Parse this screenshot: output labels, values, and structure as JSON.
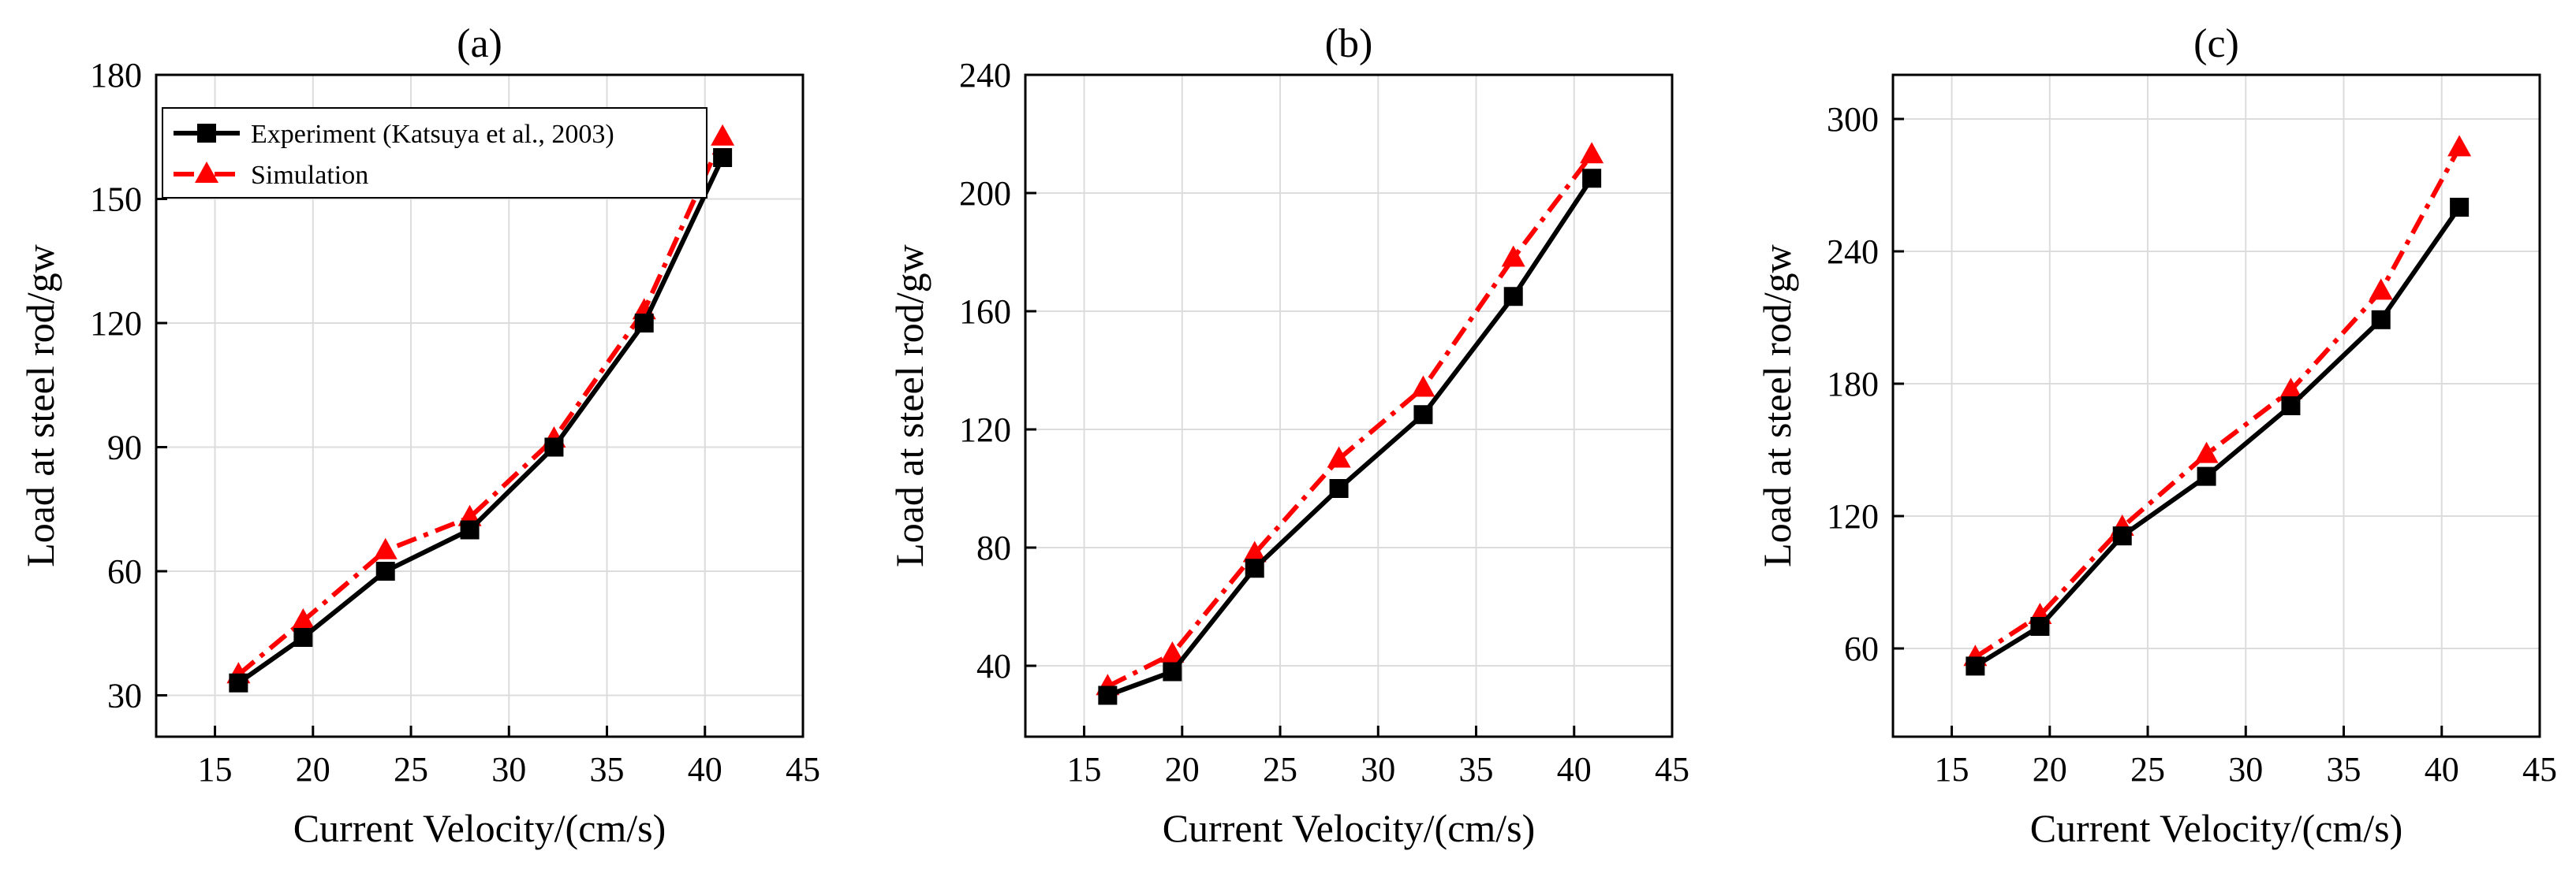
{
  "chart_data": [
    {
      "type": "line",
      "title": "(a)",
      "xlabel": "Current Velocity/(cm/s)",
      "ylabel": "Load at steel rod/gw",
      "xlim": [
        12,
        45
      ],
      "ylim": [
        20,
        180
      ],
      "xticks": [
        15,
        20,
        25,
        30,
        35,
        40,
        45
      ],
      "yticks": [
        30,
        60,
        90,
        120,
        150,
        180
      ],
      "grid": true,
      "legend": {
        "position": "top-left",
        "entries": [
          "Experiment (Katsuya et al., 2003)",
          "Simulation"
        ]
      },
      "series": [
        {
          "name": "Experiment (Katsuya et al., 2003)",
          "color": "#000000",
          "marker": "square",
          "linestyle": "solid",
          "x": [
            16.2,
            19.5,
            23.7,
            28,
            32.3,
            36.9,
            40.9
          ],
          "y": [
            33,
            44,
            60,
            70,
            90,
            120,
            160
          ]
        },
        {
          "name": "Simulation",
          "color": "#ff0000",
          "marker": "triangle",
          "linestyle": "dashdot",
          "x": [
            16.2,
            19.5,
            23.7,
            28,
            32.3,
            36.9,
            40.9
          ],
          "y": [
            35,
            48,
            65,
            73,
            92,
            123,
            165
          ]
        }
      ]
    },
    {
      "type": "line",
      "title": "(b)",
      "xlabel": "Current Velocity/(cm/s)",
      "ylabel": "Load at steel rod/gw",
      "xlim": [
        12,
        45
      ],
      "ylim": [
        16,
        240
      ],
      "xticks": [
        15,
        20,
        25,
        30,
        35,
        40,
        45
      ],
      "yticks": [
        40,
        80,
        120,
        160,
        200,
        240
      ],
      "grid": true,
      "series": [
        {
          "name": "Experiment (Katsuya et al., 2003)",
          "color": "#000000",
          "marker": "square",
          "linestyle": "solid",
          "x": [
            16.2,
            19.5,
            23.7,
            28,
            32.3,
            36.9,
            40.9
          ],
          "y": [
            30,
            38,
            73,
            100,
            125,
            165,
            205
          ]
        },
        {
          "name": "Simulation",
          "color": "#ff0000",
          "marker": "triangle",
          "linestyle": "dashdot",
          "x": [
            16.2,
            19.5,
            23.7,
            28,
            32.3,
            36.9,
            40.9
          ],
          "y": [
            33,
            44,
            78,
            110,
            134,
            178,
            213
          ]
        }
      ]
    },
    {
      "type": "line",
      "title": "(c)",
      "xlabel": "Current Velocity/(cm/s)",
      "ylabel": "Load at steel rod/gw",
      "xlim": [
        12,
        45
      ],
      "ylim": [
        20,
        320
      ],
      "xticks": [
        15,
        20,
        25,
        30,
        35,
        40,
        45
      ],
      "yticks": [
        60,
        120,
        180,
        240,
        300
      ],
      "grid": true,
      "series": [
        {
          "name": "Experiment (Katsuya et al., 2003)",
          "color": "#000000",
          "marker": "square",
          "linestyle": "solid",
          "x": [
            16.2,
            19.5,
            23.7,
            28,
            32.3,
            36.9,
            40.9
          ],
          "y": [
            52,
            70,
            111,
            138,
            170,
            209,
            260
          ]
        },
        {
          "name": "Simulation",
          "color": "#ff0000",
          "marker": "triangle",
          "linestyle": "dashdot",
          "x": [
            16.2,
            19.5,
            23.7,
            28,
            32.3,
            36.9,
            40.9
          ],
          "y": [
            56,
            75,
            115,
            148,
            177,
            222,
            287
          ]
        }
      ]
    }
  ]
}
